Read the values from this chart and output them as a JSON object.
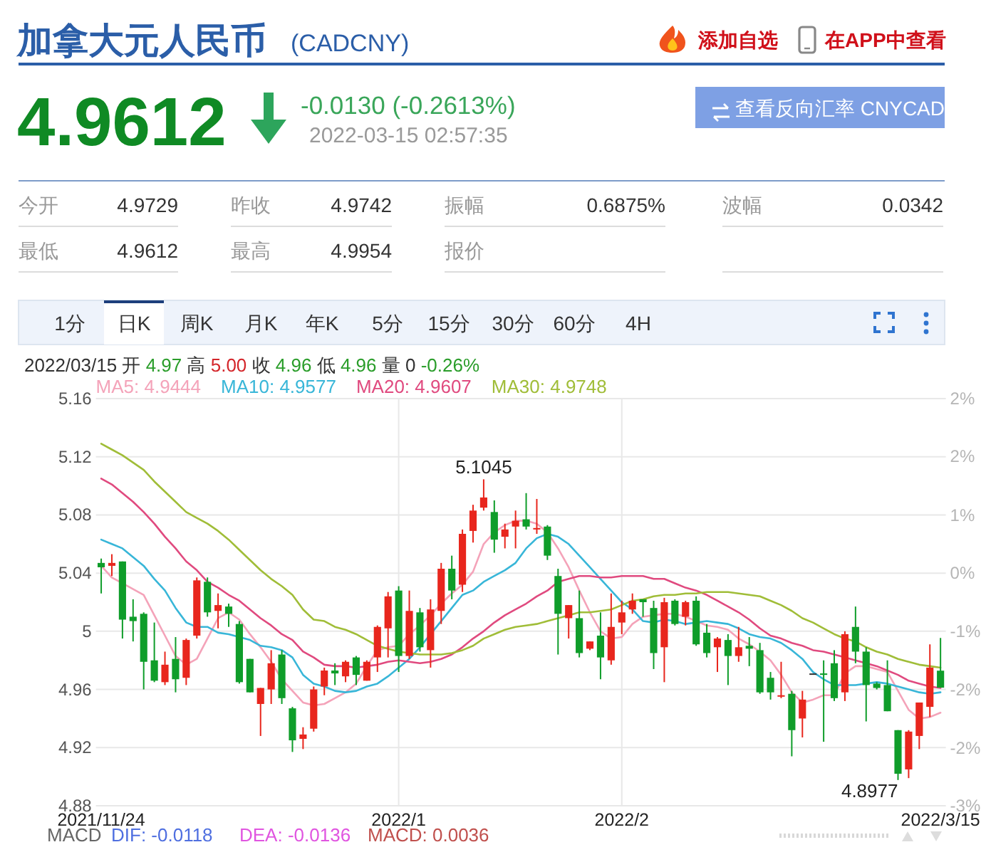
{
  "chart_data": {
    "type": "candlestick",
    "title": "加拿大元人民币",
    "subtitle": "(CADCNY)",
    "categories": [
      "2021/11/24",
      null,
      null,
      null,
      null,
      null,
      null,
      null,
      null,
      null,
      null,
      null,
      null,
      null,
      null,
      null,
      null,
      null,
      null,
      null,
      null,
      null,
      null,
      null,
      null,
      null,
      null,
      null,
      "2022/1",
      null,
      null,
      null,
      null,
      null,
      null,
      null,
      null,
      null,
      null,
      null,
      null,
      null,
      null,
      null,
      null,
      null,
      null,
      null,
      null,
      "2022/2",
      null,
      null,
      null,
      null,
      null,
      null,
      null,
      null,
      null,
      null,
      null,
      null,
      null,
      null,
      null,
      null,
      null,
      null,
      null,
      null,
      null,
      null,
      null,
      null,
      null,
      null,
      null,
      null,
      null,
      "2022/3/15"
    ],
    "ohlc": [
      [
        5.047,
        5.05,
        5.026,
        5.044
      ],
      [
        5.045,
        5.053,
        5.038,
        5.047
      ],
      [
        5.048,
        5.048,
        4.995,
        5.008
      ],
      [
        5.01,
        5.022,
        4.993,
        5.007
      ],
      [
        5.012,
        5.013,
        4.96,
        4.979
      ],
      [
        4.98,
        5.006,
        4.965,
        4.966
      ],
      [
        4.965,
        4.986,
        4.963,
        4.977
      ],
      [
        4.981,
        4.996,
        4.958,
        4.967
      ],
      [
        4.968,
        4.995,
        4.963,
        4.994
      ],
      [
        4.997,
        5.037,
        4.995,
        5.035
      ],
      [
        5.034,
        5.037,
        5.01,
        5.013
      ],
      [
        5.014,
        5.026,
        5.002,
        5.018
      ],
      [
        5.017,
        5.019,
        5.003,
        5.012
      ],
      [
        5.005,
        5.007,
        4.964,
        4.965
      ],
      [
        4.981,
        4.981,
        4.958,
        4.958
      ],
      [
        4.95,
        4.961,
        4.928,
        4.961
      ],
      [
        4.96,
        4.987,
        4.95,
        4.978
      ],
      [
        4.984,
        4.987,
        4.95,
        4.954
      ],
      [
        4.947,
        4.948,
        4.917,
        4.925
      ],
      [
        4.926,
        4.934,
        4.919,
        4.929
      ],
      [
        4.933,
        4.962,
        4.931,
        4.96
      ],
      [
        4.962,
        4.975,
        4.956,
        4.973
      ],
      [
        4.973,
        4.978,
        4.963,
        4.971
      ],
      [
        4.969,
        4.98,
        4.965,
        4.979
      ],
      [
        4.982,
        4.983,
        4.963,
        4.97
      ],
      [
        4.966,
        4.98,
        4.966,
        4.979
      ],
      [
        4.982,
        5.004,
        4.972,
        5.003
      ],
      [
        5.002,
        5.027,
        4.982,
        5.024
      ],
      [
        5.028,
        5.031,
        4.972,
        4.983
      ],
      [
        4.983,
        5.028,
        4.981,
        5.014
      ],
      [
        5.013,
        5.016,
        4.986,
        4.989
      ],
      [
        4.987,
        5.022,
        4.975,
        5.015
      ],
      [
        5.014,
        5.047,
        5.005,
        5.043
      ],
      [
        5.043,
        5.052,
        5.022,
        5.028
      ],
      [
        5.032,
        5.07,
        5.027,
        5.067
      ],
      [
        5.069,
        5.087,
        5.061,
        5.083
      ],
      [
        5.085,
        5.1045,
        5.083,
        5.092
      ],
      [
        5.082,
        5.09,
        5.054,
        5.063
      ],
      [
        5.065,
        5.074,
        5.057,
        5.07
      ],
      [
        5.072,
        5.083,
        5.057,
        5.076
      ],
      [
        5.077,
        5.095,
        5.07,
        5.072
      ],
      [
        5.07,
        5.091,
        5.067,
        5.071
      ],
      [
        5.072,
        5.073,
        5.049,
        5.052
      ],
      [
        5.038,
        5.043,
        4.984,
        5.012
      ],
      [
        5.009,
        5.018,
        4.995,
        5.018
      ],
      [
        5.009,
        5.028,
        4.982,
        4.985
      ],
      [
        4.988,
        4.993,
        4.987,
        4.993
      ],
      [
        4.997,
        5.013,
        4.967,
        4.982
      ],
      [
        4.98,
        5.026,
        4.977,
        5.003
      ],
      [
        5.006,
        5.021,
        4.998,
        5.013
      ],
      [
        5.015,
        5.026,
        5.012,
        5.021
      ],
      [
        5.022,
        5.022,
        5.01,
        5.02
      ],
      [
        5.016,
        5.021,
        4.974,
        4.985
      ],
      [
        4.989,
        5.023,
        4.965,
        5.02
      ],
      [
        5.021,
        5.022,
        5.004,
        5.005
      ],
      [
        5.01,
        5.021,
        5.004,
        5.02
      ],
      [
        5.021,
        5.024,
        4.99,
        4.991
      ],
      [
        4.999,
        5.005,
        4.982,
        4.985
      ],
      [
        4.989,
        4.996,
        4.972,
        4.995
      ],
      [
        4.994,
        4.998,
        4.963,
        4.983
      ],
      [
        4.983,
        5.003,
        4.979,
        4.989
      ],
      [
        4.99,
        4.996,
        4.976,
        4.988
      ],
      [
        4.987,
        4.992,
        4.957,
        4.958
      ],
      [
        4.968,
        4.972,
        4.953,
        4.958
      ],
      [
        4.955,
        4.979,
        4.954,
        4.956
      ],
      [
        4.957,
        4.959,
        4.914,
        4.932
      ],
      [
        4.94,
        4.959,
        4.927,
        4.953
      ],
      [
        4.971,
        4.971,
        4.971,
        4.971
      ],
      [
        4.971,
        4.98,
        4.924,
        4.97
      ],
      [
        4.978,
        4.987,
        4.952,
        4.954
      ],
      [
        4.958,
        5.0,
        4.952,
        4.998
      ],
      [
        5.003,
        5.017,
        4.978,
        4.986
      ],
      [
        4.986,
        4.989,
        4.938,
        4.963
      ],
      [
        4.964,
        4.965,
        4.96,
        4.961
      ],
      [
        4.963,
        4.98,
        4.945,
        4.945
      ],
      [
        4.932,
        4.932,
        4.8977,
        4.902
      ],
      [
        4.905,
        4.932,
        4.899,
        4.931
      ],
      [
        4.928,
        4.951,
        4.919,
        4.951
      ],
      [
        4.948,
        4.991,
        4.941,
        4.975
      ],
      [
        4.9729,
        4.9954,
        4.9612,
        4.9612
      ]
    ],
    "colors": [
      "#0f9d2a",
      "#e8261d",
      "#0f9d2a",
      "#0f9d2a",
      "#0f9d2a",
      "#0f9d2a",
      "#e8261d",
      "#0f9d2a",
      "#e8261d",
      "#e8261d",
      "#0f9d2a",
      "#e8261d",
      "#0f9d2a",
      "#0f9d2a",
      "#0f9d2a",
      "#e8261d",
      "#e8261d",
      "#0f9d2a",
      "#0f9d2a",
      "#e8261d",
      "#e8261d",
      "#e8261d",
      "#0f9d2a",
      "#e8261d",
      "#0f9d2a",
      "#e8261d",
      "#e8261d",
      "#e8261d",
      "#0f9d2a",
      "#e8261d",
      "#0f9d2a",
      "#e8261d",
      "#e8261d",
      "#0f9d2a",
      "#e8261d",
      "#e8261d",
      "#e8261d",
      "#0f9d2a",
      "#e8261d",
      "#e8261d",
      "#0f9d2a",
      "#e8261d",
      "#0f9d2a",
      "#0f9d2a",
      "#e8261d",
      "#0f9d2a",
      "#e8261d",
      "#0f9d2a",
      "#e8261d",
      "#e8261d",
      "#e8261d",
      "#0f9d2a",
      "#0f9d2a",
      "#e8261d",
      "#0f9d2a",
      "#e8261d",
      "#0f9d2a",
      "#0f9d2a",
      "#e8261d",
      "#0f9d2a",
      "#e8261d",
      "#0f9d2a",
      "#0f9d2a",
      "#0f9d2a",
      "#e8261d",
      "#0f9d2a",
      "#e8261d",
      "#333333",
      "#0f9d2a",
      "#0f9d2a",
      "#e8261d",
      "#0f9d2a",
      "#0f9d2a",
      "#0f9d2a",
      "#0f9d2a",
      "#0f9d2a",
      "#e8261d",
      "#e8261d",
      "#e8261d",
      "#0f9d2a"
    ],
    "series": [
      {
        "name": "MA5: 4.9444",
        "type": "line",
        "color": "#f4a3b9",
        "values": [
          5.045,
          5.037,
          5.033,
          5.029,
          5.025,
          5.011,
          4.997,
          4.983,
          4.977,
          4.981,
          4.995,
          5.009,
          5.013,
          5.008,
          4.998,
          4.989,
          4.979,
          4.967,
          4.959,
          4.951,
          4.949,
          4.95,
          4.954,
          4.958,
          4.964,
          4.976,
          4.987,
          4.989,
          4.99,
          4.998,
          5.004,
          5.011,
          5.019,
          5.026,
          5.032,
          5.041,
          5.06,
          5.068,
          5.073,
          5.076,
          5.076,
          5.074,
          5.068,
          5.057,
          5.044,
          5.028,
          5.013,
          5.0,
          4.995,
          4.996,
          5.005,
          5.01,
          5.011,
          5.012,
          5.012,
          5.01,
          5.007,
          5.004,
          5.003,
          5.001,
          4.995,
          4.991,
          4.986,
          4.98,
          4.97,
          4.958,
          4.951,
          4.953,
          4.956,
          4.956,
          4.971,
          4.976,
          4.976,
          4.974,
          4.972,
          4.959,
          4.946,
          4.94,
          4.941,
          4.944
        ]
      },
      {
        "name": "MA10: 4.9577",
        "type": "line",
        "color": "#38b6d8",
        "values": [
          5.063,
          5.06,
          5.057,
          5.051,
          5.045,
          5.036,
          5.028,
          5.016,
          5.006,
          5.003,
          5.003,
          4.999,
          4.998,
          4.996,
          4.994,
          4.99,
          4.989,
          4.987,
          4.982,
          4.97,
          4.964,
          4.962,
          4.959,
          4.958,
          4.959,
          4.962,
          4.964,
          4.969,
          4.975,
          4.981,
          4.989,
          4.998,
          5.007,
          5.016,
          5.025,
          5.028,
          5.034,
          5.038,
          5.042,
          5.047,
          5.057,
          5.064,
          5.067,
          5.065,
          5.06,
          5.052,
          5.044,
          5.036,
          5.028,
          5.02,
          5.015,
          5.007,
          5.006,
          5.008,
          5.007,
          5.005,
          5.006,
          5.007,
          5.006,
          5.005,
          5.002,
          4.998,
          4.996,
          4.995,
          4.992,
          4.987,
          4.981,
          4.972,
          4.967,
          4.963,
          4.963,
          4.963,
          4.964,
          4.965,
          4.964,
          4.962,
          4.96,
          4.958,
          4.957,
          4.958
        ]
      },
      {
        "name": "MA20: 4.9607",
        "type": "line",
        "color": "#e04a7f",
        "values": [
          5.105,
          5.101,
          5.095,
          5.089,
          5.082,
          5.074,
          5.065,
          5.057,
          5.048,
          5.042,
          5.034,
          5.03,
          5.025,
          5.021,
          5.015,
          5.009,
          5.004,
          4.998,
          4.994,
          4.986,
          4.982,
          4.977,
          4.976,
          4.976,
          4.975,
          4.976,
          4.977,
          4.979,
          4.98,
          4.979,
          4.978,
          4.979,
          4.981,
          4.984,
          4.989,
          4.995,
          5.0,
          5.006,
          5.011,
          5.015,
          5.019,
          5.024,
          5.028,
          5.034,
          5.036,
          5.038,
          5.038,
          5.037,
          5.037,
          5.038,
          5.038,
          5.038,
          5.036,
          5.036,
          5.033,
          5.03,
          5.028,
          5.025,
          5.021,
          5.017,
          5.013,
          5.008,
          5.002,
          4.997,
          4.995,
          4.992,
          4.99,
          4.987,
          4.986,
          4.984,
          4.982,
          4.98,
          4.978,
          4.976,
          4.973,
          4.97,
          4.966,
          4.964,
          4.962,
          4.961
        ]
      },
      {
        "name": "MA30: 4.9748",
        "type": "line",
        "color": "#a0bd38",
        "values": [
          5.129,
          5.125,
          5.121,
          5.116,
          5.111,
          5.103,
          5.096,
          5.089,
          5.082,
          5.078,
          5.074,
          5.069,
          5.063,
          5.056,
          5.049,
          5.042,
          5.036,
          5.031,
          5.025,
          5.015,
          5.008,
          5.007,
          5.003,
          5.001,
          4.998,
          4.994,
          4.99,
          4.988,
          4.986,
          4.985,
          4.984,
          4.984,
          4.984,
          4.985,
          4.987,
          4.99,
          4.995,
          4.998,
          5.001,
          5.003,
          5.004,
          5.005,
          5.007,
          5.009,
          5.011,
          5.013,
          5.013,
          5.014,
          5.015,
          5.018,
          5.021,
          5.022,
          5.024,
          5.025,
          5.025,
          5.026,
          5.026,
          5.027,
          5.027,
          5.027,
          5.026,
          5.025,
          5.024,
          5.021,
          5.018,
          5.014,
          5.009,
          5.006,
          5.002,
          4.998,
          4.995,
          4.993,
          4.989,
          4.986,
          4.984,
          4.981,
          4.979,
          4.977,
          4.976,
          4.975
        ]
      }
    ],
    "ylim": [
      4.88,
      5.16
    ],
    "yticks": [
      4.88,
      4.92,
      4.96,
      5,
      5.04,
      5.08,
      5.12,
      5.16
    ],
    "y2lim": [
      -3.17,
      2.38
    ],
    "y2ticks": [
      {
        "value": -3.17,
        "label": "-3%"
      },
      {
        "value": -2.38,
        "label": "-2%"
      },
      {
        "value": -1.59,
        "label": "-2%"
      },
      {
        "value": -0.79,
        "label": "-1%"
      },
      {
        "value": 0,
        "label": "0%"
      },
      {
        "value": 0.79,
        "label": "1%"
      },
      {
        "value": 1.59,
        "label": "2%"
      },
      {
        "value": 2.38,
        "label": "2%"
      }
    ],
    "grid": true,
    "legend": "top left",
    "annotations": [
      "添加自选",
      "在APP中查看",
      "4.9612",
      "-0.0130 (-0.2613%)",
      "2022-03-15 02:57:35",
      "查看反向汇率 CNYCAD",
      "今开",
      "4.9729",
      "昨收",
      "4.9742",
      "振幅",
      "0.6875%",
      "波幅",
      "0.0342",
      "最低",
      "4.9612",
      "最高",
      "4.9954",
      "报价",
      "1分",
      "日K",
      "周K",
      "月K",
      "年K",
      "5分",
      "15分",
      "30分",
      "60分",
      "4H",
      "2022/03/15 开 4.97 高 5.00 收 4.96 低 4.96 量 0 -0.26%",
      "MACD",
      "DIF: -0.0118",
      "DEA: -0.0136",
      "MACD: 0.0036",
      {
        "text": "5.1045",
        "y": 5.1045
      },
      "4.8977"
    ]
  }
}
